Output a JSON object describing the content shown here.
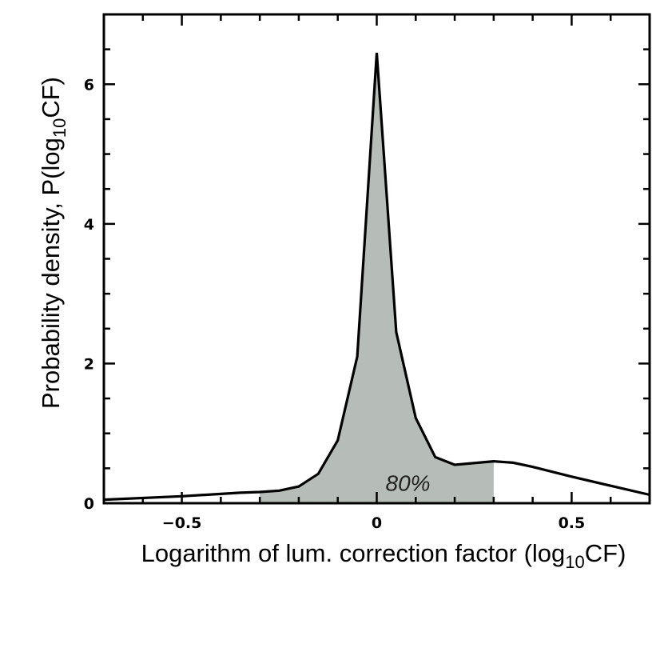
{
  "chart_data": {
    "type": "area",
    "xlabel": "Logarithm of lum. correction factor (log",
    "xlabel_sub": "10",
    "xlabel_end": "CF)",
    "ylabel": "Probability density, P(log",
    "ylabel_sub": "10",
    "ylabel_end": "CF)",
    "xlim": [
      -0.7,
      0.7
    ],
    "ylim": [
      0,
      7
    ],
    "x_ticks": [
      -0.5,
      0,
      0.5
    ],
    "x_tick_labels": [
      "−0.5",
      "0",
      "0.5"
    ],
    "y_ticks": [
      0,
      2,
      4,
      6
    ],
    "y_tick_labels": [
      "0",
      "2",
      "4",
      "6"
    ],
    "grid": false,
    "series": [
      {
        "x": [
          -0.7,
          -0.5,
          -0.35,
          -0.3,
          -0.25,
          -0.2,
          -0.15,
          -0.1,
          -0.05,
          0.0,
          0.05,
          0.1,
          0.15,
          0.2,
          0.3,
          0.35,
          0.4,
          0.5,
          0.6,
          0.7
        ],
        "y": [
          0.05,
          0.1,
          0.15,
          0.16,
          0.18,
          0.24,
          0.42,
          0.9,
          2.1,
          6.45,
          2.45,
          1.22,
          0.66,
          0.55,
          0.6,
          0.58,
          0.52,
          0.38,
          0.25,
          0.12
        ]
      }
    ],
    "shaded_region": {
      "x_from": -0.3,
      "x_to": 0.3,
      "label": "80%",
      "color": "#b6bdb9"
    },
    "line_color": "#000000"
  }
}
